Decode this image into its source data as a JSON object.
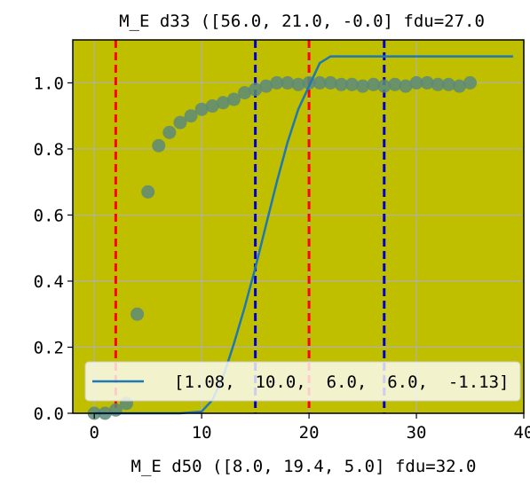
{
  "chart_data": {
    "type": "scatter",
    "title": "M_E d33 ([56.0, 21.0, -0.0] fdu=27.0",
    "xlabel": "M_E d50 ([8.0, 19.4, 5.0] fdu=32.0",
    "ylabel": "",
    "xlim": [
      -2,
      40
    ],
    "ylim": [
      0,
      1.13
    ],
    "x_ticks": [
      0,
      10,
      20,
      30,
      40
    ],
    "x_tick_labels": [
      "0",
      "10",
      "20",
      "30",
      "40"
    ],
    "y_ticks": [
      0.0,
      0.2,
      0.4,
      0.6,
      0.8,
      1.0
    ],
    "y_tick_labels": [
      "0.0",
      "0.2",
      "0.4",
      "0.6",
      "0.8",
      "1.0"
    ],
    "grid": true,
    "legend_position": "lower-right",
    "background_color": "#bfbf00",
    "series": [
      {
        "kind": "scatter",
        "color": "#5a8a78",
        "x": [
          0,
          1,
          2,
          3,
          4,
          5,
          6,
          7,
          8,
          9,
          10,
          11,
          12,
          13,
          14,
          15,
          16,
          17,
          18,
          19,
          20,
          21,
          22,
          23,
          24,
          25,
          26,
          27,
          28,
          29,
          30,
          31,
          32,
          33,
          34,
          35
        ],
        "y": [
          0.0,
          0.0,
          0.01,
          0.03,
          0.3,
          0.67,
          0.81,
          0.85,
          0.88,
          0.9,
          0.92,
          0.93,
          0.94,
          0.95,
          0.97,
          0.98,
          0.99,
          1.0,
          1.0,
          0.995,
          1.0,
          1.0,
          1.0,
          0.995,
          0.995,
          0.99,
          0.995,
          0.99,
          0.995,
          0.99,
          1.0,
          1.0,
          0.995,
          0.995,
          0.99,
          1.0
        ]
      },
      {
        "kind": "line",
        "name": "[1.08,  10.0,  6.0,  6.0,  -1.13]",
        "color": "#1f77b4",
        "x": [
          0,
          2,
          4,
          6,
          8,
          10,
          11,
          12,
          13,
          14,
          15,
          16,
          17,
          18,
          19,
          20,
          21,
          22,
          24,
          26,
          28,
          30,
          32,
          34,
          36,
          39
        ],
        "y": [
          0,
          0,
          0,
          0,
          0,
          0.005,
          0.04,
          0.11,
          0.21,
          0.32,
          0.44,
          0.57,
          0.7,
          0.82,
          0.92,
          0.99,
          1.06,
          1.08,
          1.08,
          1.08,
          1.08,
          1.08,
          1.08,
          1.08,
          1.08,
          1.08
        ]
      }
    ],
    "vlines": [
      {
        "x": 2,
        "color": "#ff0000",
        "style": "dashed"
      },
      {
        "x": 20,
        "color": "#ff0000",
        "style": "dashed"
      },
      {
        "x": 15,
        "color": "#0000cc",
        "style": "dashed"
      },
      {
        "x": 27,
        "color": "#0000cc",
        "style": "dashed"
      }
    ]
  }
}
